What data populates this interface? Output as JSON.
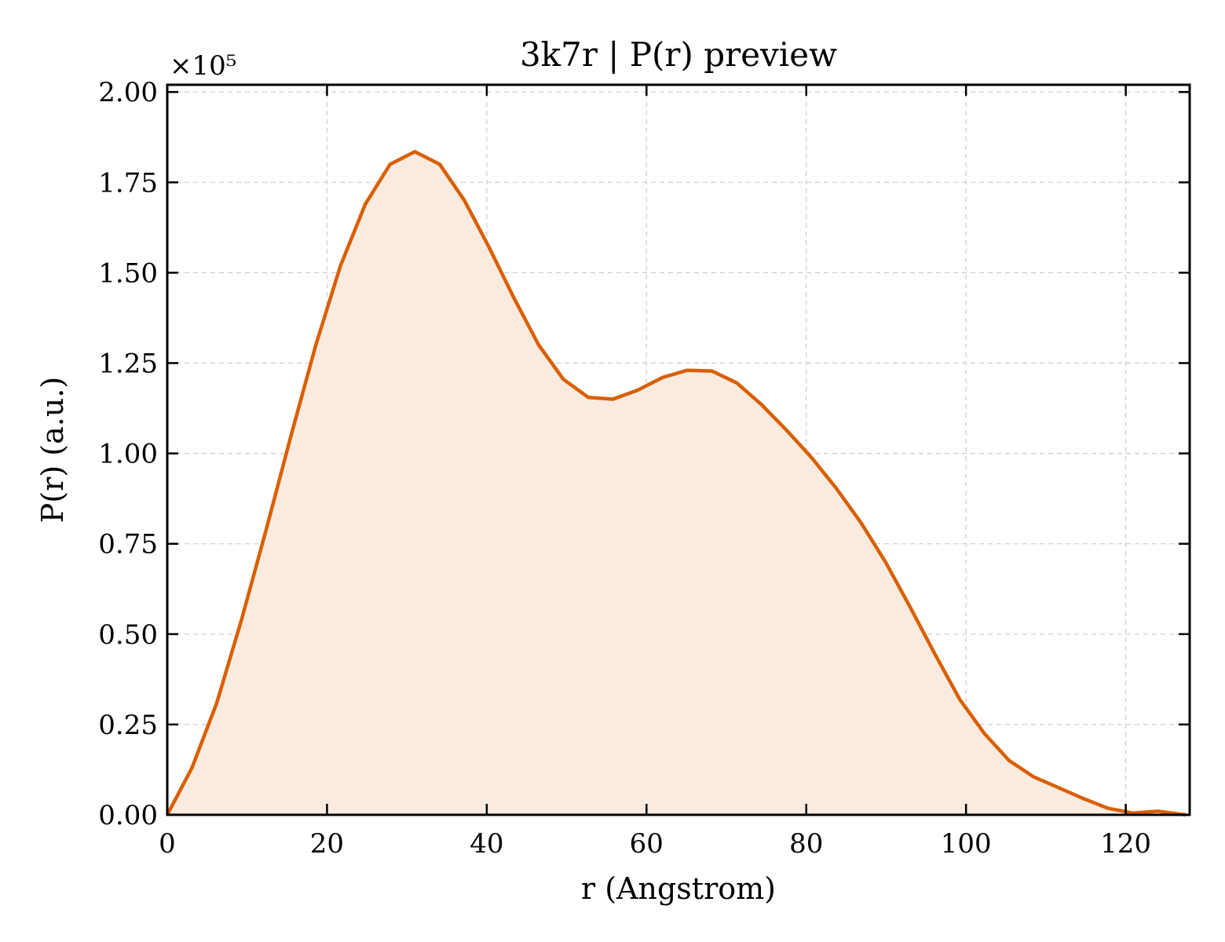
{
  "chart_data": {
    "type": "area",
    "title": "3k7r | P(r) preview",
    "xlabel": "r (Angstrom)",
    "ylabel": "P(r) (a.u.)",
    "y_scale_label": "×10⁵",
    "y_scale_factor": 100000,
    "xlim": [
      0,
      128
    ],
    "ylim": [
      0,
      2.02
    ],
    "x_ticks": [
      0,
      20,
      40,
      60,
      80,
      100,
      120
    ],
    "x_tick_labels": [
      "0",
      "20",
      "40",
      "60",
      "80",
      "100",
      "120"
    ],
    "y_ticks": [
      0,
      0.25,
      0.5,
      0.75,
      1.0,
      1.25,
      1.5,
      1.75,
      2.0
    ],
    "y_tick_labels": [
      "0.00",
      "0.25",
      "0.50",
      "0.75",
      "1.00",
      "1.25",
      "1.50",
      "1.75",
      "2.00"
    ],
    "grid": true,
    "line_color": "#d95f02",
    "fill_color": "#f9ebe0",
    "series": [
      {
        "x": [
          0,
          3.1,
          6.2,
          9.3,
          12.4,
          15.5,
          18.6,
          21.7,
          24.8,
          27.9,
          31.0,
          34.1,
          37.2,
          40.3,
          43.4,
          46.5,
          49.6,
          52.7,
          55.8,
          58.9,
          62.0,
          65.1,
          68.2,
          71.3,
          74.4,
          77.5,
          80.6,
          83.7,
          86.8,
          89.9,
          93.0,
          96.1,
          99.2,
          102.3,
          105.4,
          108.5,
          111.6,
          114.7,
          117.8,
          120.9,
          124.0,
          127.5
        ],
        "y": [
          0.0,
          0.13,
          0.31,
          0.54,
          0.79,
          1.05,
          1.3,
          1.52,
          1.69,
          1.8,
          1.835,
          1.8,
          1.7,
          1.57,
          1.43,
          1.3,
          1.205,
          1.155,
          1.15,
          1.175,
          1.21,
          1.23,
          1.228,
          1.195,
          1.135,
          1.065,
          0.99,
          0.905,
          0.81,
          0.7,
          0.575,
          0.445,
          0.32,
          0.225,
          0.15,
          0.105,
          0.075,
          0.045,
          0.018,
          0.005,
          0.01,
          0.0
        ]
      }
    ]
  }
}
